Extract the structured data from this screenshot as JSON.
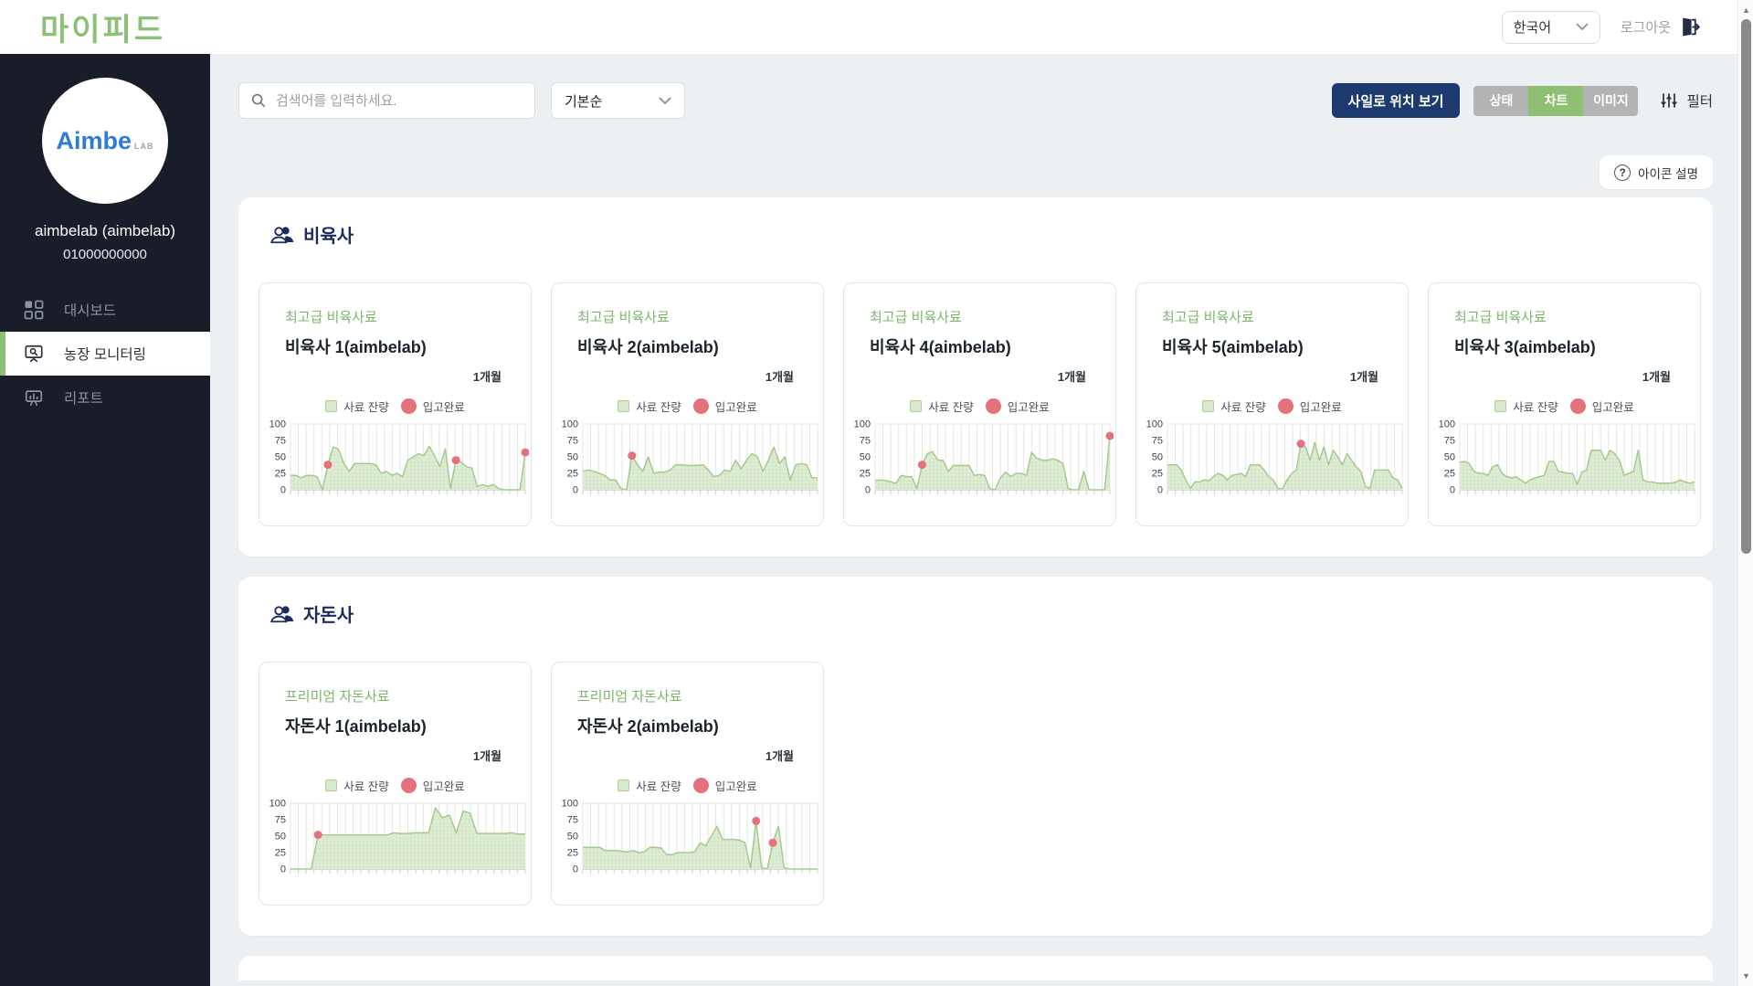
{
  "topbar": {
    "logo": "마이피드",
    "language": "한국어",
    "logout_label": "로그아웃"
  },
  "sidebar": {
    "brand_name": "Aimbe",
    "brand_sub": "LAB",
    "user_name": "aimbelab (aimbelab)",
    "user_phone": "01000000000",
    "items": [
      {
        "label": "대시보드",
        "icon": "dashboard-icon",
        "active": false
      },
      {
        "label": "농장 모니터링",
        "icon": "farm-monitoring-icon",
        "active": true
      },
      {
        "label": "리포트",
        "icon": "report-icon",
        "active": false
      }
    ]
  },
  "toolbar": {
    "search_placeholder": "검색어를 입력하세요.",
    "sort_value": "기본순",
    "silo_button_label": "사일로 위치 보기",
    "view_modes": [
      {
        "label": "상태",
        "active": false
      },
      {
        "label": "차트",
        "active": true
      },
      {
        "label": "이미지",
        "active": false
      }
    ],
    "filter_label": "필터"
  },
  "icon_help_label": "아이콘 설명",
  "legend": {
    "feed_label": "사료 잔량",
    "arrival_label": "입고완료"
  },
  "colors": {
    "accent_green": "#8dc077",
    "navy": "#1d3a6f",
    "section_title": "#1c2a5e",
    "chart_fill": "#dcebd2",
    "chart_dot_fill": "#c7ddba",
    "chart_line": "#a5ca8e",
    "chart_grid": "#e3e8df",
    "chart_tick": "#cdd4ca",
    "chart_axis": "#b6beb3",
    "arrival_red": "#e4717c",
    "segment_gray": "#b2b3b5"
  },
  "sections": [
    {
      "title": "비육사",
      "cards": [
        {
          "feed_type": "최고급 비육사료",
          "name": "비육사 1(aimbelab)",
          "period": "1개월",
          "chart": {
            "type": "area",
            "ylim": [
              0,
              100
            ],
            "yticks": [
              100,
              75,
              50,
              25,
              0
            ],
            "values": [
              22,
              22,
              18,
              22,
              22,
              20,
              0,
              38,
              65,
              62,
              40,
              28,
              40,
              40,
              40,
              40,
              38,
              25,
              28,
              22,
              25,
              20,
              45,
              50,
              55,
              52,
              66,
              52,
              35,
              62,
              2,
              45,
              42,
              35,
              33,
              5,
              8,
              5,
              8,
              2,
              0,
              0,
              0,
              0,
              57
            ],
            "arrival_dots": [
              {
                "i": 7,
                "v": 38
              },
              {
                "i": 31,
                "v": 45
              },
              {
                "i": 44,
                "v": 57
              }
            ]
          }
        },
        {
          "feed_type": "최고급 비육사료",
          "name": "비육사 2(aimbelab)",
          "period": "1개월",
          "chart": {
            "type": "area",
            "ylim": [
              0,
              100
            ],
            "yticks": [
              100,
              75,
              50,
              25,
              0
            ],
            "values": [
              28,
              30,
              28,
              25,
              22,
              15,
              15,
              2,
              0,
              52,
              38,
              28,
              50,
              25,
              27,
              27,
              30,
              38,
              38,
              37,
              37,
              37,
              38,
              30,
              20,
              22,
              30,
              28,
              45,
              32,
              45,
              55,
              50,
              28,
              45,
              65,
              40,
              50,
              15,
              38,
              40,
              38,
              18,
              18
            ],
            "arrival_dots": [
              {
                "i": 9,
                "v": 52
              }
            ]
          }
        },
        {
          "feed_type": "최고급 비육사료",
          "name": "비육사 4(aimbelab)",
          "period": "1개월",
          "chart": {
            "type": "area",
            "ylim": [
              0,
              100
            ],
            "yticks": [
              100,
              75,
              50,
              25,
              0
            ],
            "values": [
              14,
              15,
              14,
              12,
              10,
              22,
              20,
              20,
              2,
              38,
              55,
              58,
              45,
              45,
              28,
              37,
              37,
              37,
              37,
              22,
              23,
              22,
              2,
              0,
              18,
              27,
              20,
              25,
              25,
              22,
              57,
              48,
              45,
              45,
              47,
              45,
              40,
              2,
              0,
              0,
              28,
              0,
              0,
              0,
              0,
              82
            ],
            "arrival_dots": [
              {
                "i": 9,
                "v": 38
              },
              {
                "i": 45,
                "v": 82
              }
            ]
          }
        },
        {
          "feed_type": "최고급 비육사료",
          "name": "비육사 5(aimbelab)",
          "period": "1개월",
          "chart": {
            "type": "area",
            "ylim": [
              0,
              100
            ],
            "yticks": [
              100,
              75,
              50,
              25,
              0
            ],
            "values": [
              38,
              38,
              38,
              30,
              15,
              2,
              12,
              12,
              15,
              14,
              20,
              25,
              22,
              15,
              22,
              23,
              25,
              20,
              38,
              38,
              38,
              30,
              20,
              15,
              2,
              2,
              15,
              25,
              30,
              70,
              65,
              45,
              72,
              45,
              65,
              38,
              60,
              50,
              38,
              55,
              45,
              35,
              28,
              5,
              2,
              30,
              30,
              30,
              30,
              18,
              15,
              2
            ],
            "arrival_dots": [
              {
                "i": 29,
                "v": 70
              }
            ]
          }
        },
        {
          "feed_type": "최고급 비육사료",
          "name": "비육사 3(aimbelab)",
          "period": "1개월",
          "chart": {
            "type": "area",
            "ylim": [
              0,
              100
            ],
            "yticks": [
              100,
              75,
              50,
              25,
              0
            ],
            "values": [
              42,
              43,
              40,
              28,
              25,
              25,
              22,
              35,
              38,
              25,
              20,
              18,
              20,
              15,
              10,
              15,
              18,
              20,
              22,
              43,
              43,
              28,
              27,
              25,
              25,
              8,
              27,
              30,
              60,
              60,
              60,
              45,
              60,
              55,
              45,
              22,
              25,
              28,
              60,
              15,
              12,
              12,
              10,
              10,
              10,
              10,
              12,
              15,
              12,
              10,
              12
            ],
            "arrival_dots": []
          }
        }
      ]
    },
    {
      "title": "자돈사",
      "cards": [
        {
          "feed_type": "프리미엄 자돈사료",
          "name": "자돈사 1(aimbelab)",
          "period": "1개월",
          "chart": {
            "type": "area",
            "ylim": [
              0,
              100
            ],
            "yticks": [
              100,
              75,
              50,
              25,
              0
            ],
            "values": [
              0,
              0,
              0,
              0,
              52,
              52,
              52,
              52,
              52,
              52,
              52,
              52,
              52,
              52,
              52,
              55,
              54,
              54,
              55,
              55,
              55,
              93,
              78,
              82,
              55,
              88,
              85,
              54,
              54,
              54,
              54,
              54,
              55,
              53,
              53
            ],
            "arrival_dots": [
              {
                "i": 4,
                "v": 52
              }
            ]
          }
        },
        {
          "feed_type": "프리미엄 자돈사료",
          "name": "자돈사 2(aimbelab)",
          "period": "1개월",
          "chart": {
            "type": "area",
            "ylim": [
              0,
              100
            ],
            "yticks": [
              100,
              75,
              50,
              25,
              0
            ],
            "values": [
              33,
              33,
              33,
              33,
              28,
              28,
              28,
              27,
              26,
              28,
              25,
              26,
              33,
              33,
              32,
              22,
              22,
              25,
              25,
              25,
              26,
              40,
              35,
              50,
              65,
              45,
              45,
              45,
              44,
              40,
              2,
              73,
              2,
              0,
              40,
              65,
              2,
              0,
              0,
              0,
              0,
              0,
              0
            ],
            "arrival_dots": [
              {
                "i": 31,
                "v": 73
              },
              {
                "i": 34,
                "v": 40
              }
            ]
          }
        }
      ]
    }
  ]
}
